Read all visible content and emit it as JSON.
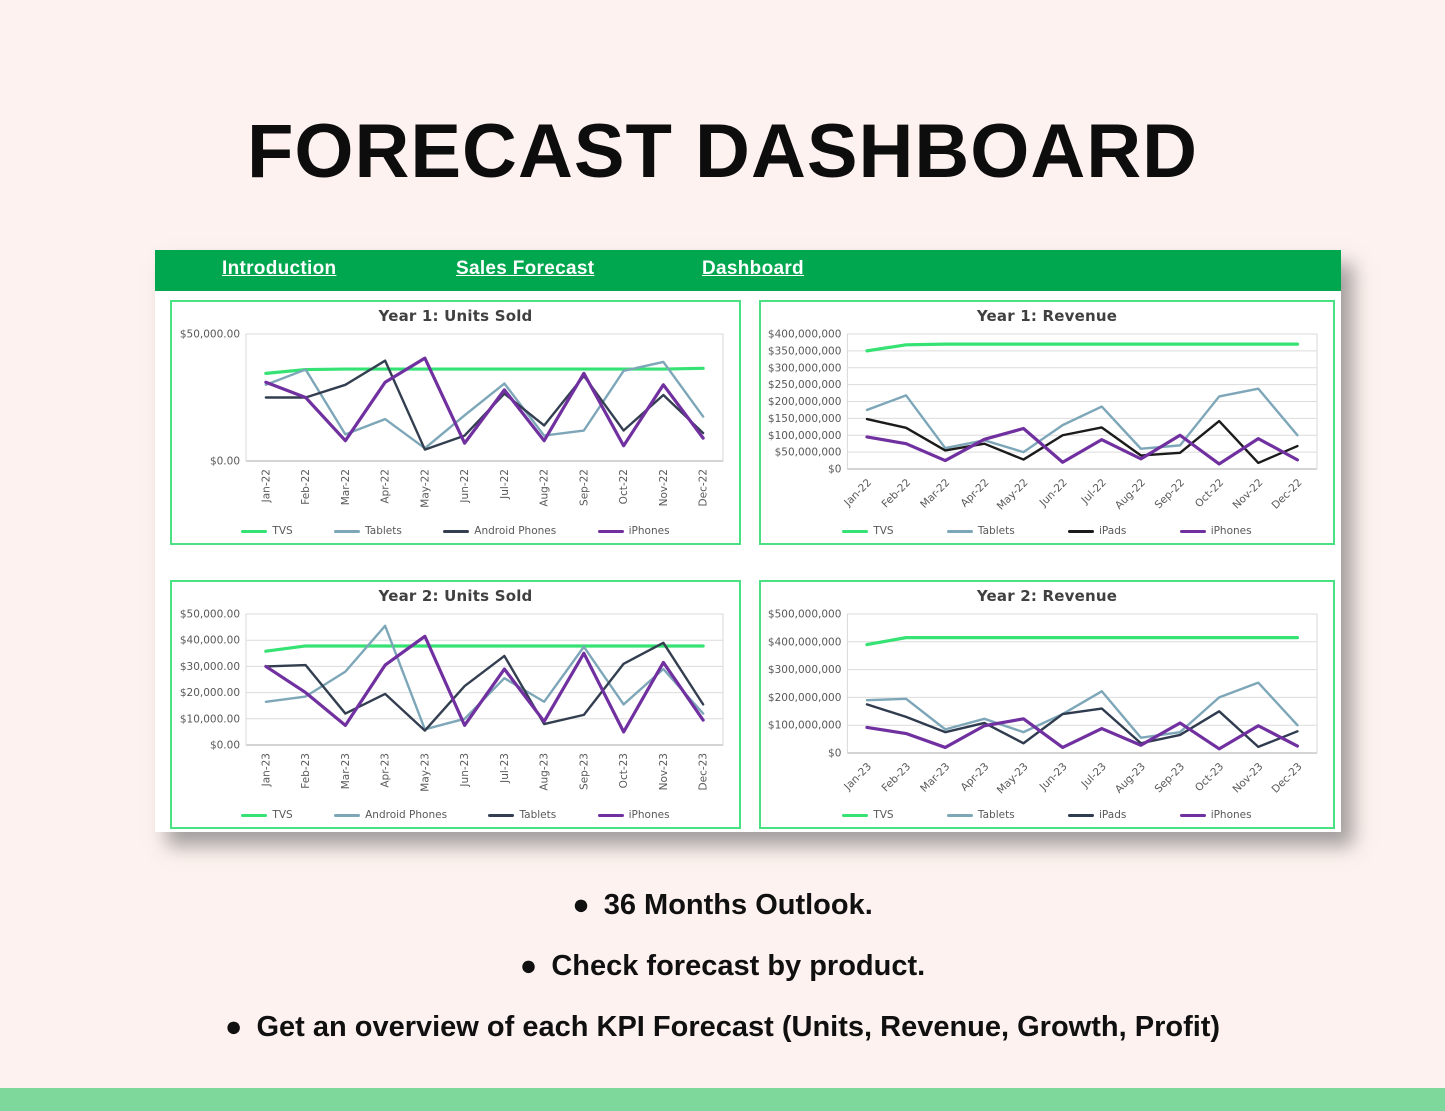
{
  "page": {
    "title": "FORECAST DASHBOARD",
    "background_color": "#fdf2ef",
    "sheet_color": "#ffffff",
    "accent_green": "#00a74f",
    "panel_border_green": "#4ae183",
    "footer_bar_color": "#7ed79b"
  },
  "nav": {
    "background": "#00a74f",
    "items": [
      {
        "label": "Introduction"
      },
      {
        "label": "Sales Forecast"
      },
      {
        "label": "Dashboard"
      }
    ]
  },
  "bullets": [
    "36 Months Outlook.",
    "Check forecast by product.",
    "Get an overview of each KPI Forecast (Units, Revenue, Growth, Profit)"
  ],
  "chart_data": [
    {
      "type": "line",
      "title": "Year 1: Units Sold",
      "x": [
        "Jan-22",
        "Feb-22",
        "Mar-22",
        "Apr-22",
        "May-22",
        "Jun-22",
        "Jul-22",
        "Aug-22",
        "Sep-22",
        "Oct-22",
        "Nov-22",
        "Dec-22"
      ],
      "x_label_rotation": "vertical",
      "ylim": [
        0,
        50000
      ],
      "yticks": {
        "values": [
          0,
          50000
        ],
        "labels": [
          "$0.00",
          "$50,000.00"
        ]
      },
      "grid": true,
      "legend_position": "bottom",
      "series": [
        {
          "name": "TVS",
          "color": "#35e273",
          "values": [
            34500,
            36000,
            36200,
            36200,
            36200,
            36200,
            36200,
            36200,
            36200,
            36200,
            36200,
            36500
          ]
        },
        {
          "name": "Tablets",
          "color": "#7da7b8",
          "values": [
            30000,
            36000,
            10500,
            16500,
            5000,
            18000,
            30500,
            10000,
            12000,
            35500,
            39000,
            17500
          ]
        },
        {
          "name": "Android Phones",
          "color": "#333f50",
          "values": [
            25000,
            25000,
            30000,
            39500,
            4500,
            10000,
            26500,
            14000,
            33500,
            12000,
            26000,
            11000
          ]
        },
        {
          "name": "iPhones",
          "color": "#7030a0",
          "values": [
            31000,
            25000,
            8000,
            31000,
            40500,
            7000,
            28000,
            8000,
            34500,
            6000,
            30000,
            9000
          ]
        }
      ]
    },
    {
      "type": "line",
      "title": "Year 1: Revenue",
      "x": [
        "Jan-22",
        "Feb-22",
        "Mar-22",
        "Apr-22",
        "May-22",
        "Jun-22",
        "Jul-22",
        "Aug-22",
        "Sep-22",
        "Oct-22",
        "Nov-22",
        "Dec-22"
      ],
      "x_label_rotation": "diagonal",
      "ylim": [
        0,
        400000000
      ],
      "yticks": {
        "values": [
          0,
          50000000,
          100000000,
          150000000,
          200000000,
          250000000,
          300000000,
          350000000,
          400000000
        ],
        "labels": [
          "$0",
          "$50,000,000",
          "$100,000,000",
          "$150,000,000",
          "$200,000,000",
          "$250,000,000",
          "$300,000,000",
          "$350,000,000",
          "$400,000,000"
        ]
      },
      "grid": true,
      "legend_position": "bottom",
      "series": [
        {
          "name": "TVS",
          "color": "#35e273",
          "values": [
            350000000,
            368000000,
            370000000,
            370000000,
            370000000,
            370000000,
            370000000,
            370000000,
            370000000,
            370000000,
            370000000,
            370000000
          ]
        },
        {
          "name": "Tablets",
          "color": "#7da7b8",
          "values": [
            175000000,
            218000000,
            62000000,
            85000000,
            50000000,
            130000000,
            185000000,
            60000000,
            70000000,
            215000000,
            238000000,
            100000000
          ]
        },
        {
          "name": "iPads",
          "color": "#1b1b1b",
          "values": [
            148000000,
            122000000,
            55000000,
            75000000,
            28000000,
            100000000,
            123000000,
            40000000,
            48000000,
            142000000,
            18000000,
            68000000
          ]
        },
        {
          "name": "iPhones",
          "color": "#7030a0",
          "values": [
            95000000,
            75000000,
            25000000,
            88000000,
            120000000,
            20000000,
            87000000,
            30000000,
            100000000,
            15000000,
            90000000,
            27000000
          ]
        }
      ]
    },
    {
      "type": "line",
      "title": "Year 2: Units Sold",
      "x": [
        "Jan-23",
        "Feb-23",
        "Mar-23",
        "Apr-23",
        "May-23",
        "Jun-23",
        "Jul-23",
        "Aug-23",
        "Sep-23",
        "Oct-23",
        "Nov-23",
        "Dec-23"
      ],
      "x_label_rotation": "vertical",
      "ylim": [
        0,
        50000
      ],
      "yticks": {
        "values": [
          0,
          10000,
          20000,
          30000,
          40000,
          50000
        ],
        "labels": [
          "$0.00",
          "$10,000.00",
          "$20,000.00",
          "$30,000.00",
          "$40,000.00",
          "$50,000.00"
        ]
      },
      "grid": true,
      "legend_position": "bottom",
      "series": [
        {
          "name": "TVS",
          "color": "#35e273",
          "values": [
            35800,
            37800,
            37800,
            37800,
            37800,
            37800,
            37800,
            37800,
            37800,
            37800,
            37800,
            37800
          ]
        },
        {
          "name": "Android Phones",
          "color": "#7da7b8",
          "values": [
            16500,
            18500,
            28000,
            45500,
            6000,
            10000,
            25500,
            16500,
            37500,
            15500,
            29000,
            12000
          ]
        },
        {
          "name": "Tablets",
          "color": "#333f50",
          "values": [
            30000,
            30500,
            12000,
            19500,
            5500,
            22500,
            34000,
            8000,
            11500,
            31000,
            39000,
            15500
          ]
        },
        {
          "name": "iPhones",
          "color": "#7030a0",
          "values": [
            30000,
            20000,
            7500,
            30500,
            41500,
            7500,
            29000,
            9000,
            35000,
            5000,
            31500,
            9500
          ]
        }
      ]
    },
    {
      "type": "line",
      "title": "Year 2: Revenue",
      "x": [
        "Jan-23",
        "Feb-23",
        "Mar-23",
        "Apr-23",
        "May-23",
        "Jun-23",
        "Jul-23",
        "Aug-23",
        "Sep-23",
        "Oct-23",
        "Nov-23",
        "Dec-23"
      ],
      "x_label_rotation": "diagonal",
      "ylim": [
        0,
        500000000
      ],
      "yticks": {
        "values": [
          0,
          100000000,
          200000000,
          300000000,
          400000000,
          500000000
        ],
        "labels": [
          "$0",
          "$100,000,000",
          "$200,000,000",
          "$300,000,000",
          "$400,000,000",
          "$500,000,000"
        ]
      },
      "grid": true,
      "legend_position": "bottom",
      "series": [
        {
          "name": "TVS",
          "color": "#35e273",
          "values": [
            390000000,
            415000000,
            415000000,
            415000000,
            415000000,
            415000000,
            415000000,
            415000000,
            415000000,
            415000000,
            415000000,
            415000000
          ]
        },
        {
          "name": "Tablets",
          "color": "#7da7b8",
          "values": [
            190000000,
            195000000,
            85000000,
            123000000,
            75000000,
            140000000,
            222000000,
            55000000,
            75000000,
            200000000,
            253000000,
            100000000
          ]
        },
        {
          "name": "iPads",
          "color": "#2f3b4e",
          "values": [
            175000000,
            130000000,
            75000000,
            108000000,
            35000000,
            140000000,
            160000000,
            35000000,
            65000000,
            150000000,
            22000000,
            78000000
          ]
        },
        {
          "name": "iPhones",
          "color": "#7030a0",
          "values": [
            92000000,
            70000000,
            20000000,
            98000000,
            123000000,
            20000000,
            88000000,
            28000000,
            108000000,
            15000000,
            98000000,
            25000000
          ]
        }
      ]
    }
  ]
}
